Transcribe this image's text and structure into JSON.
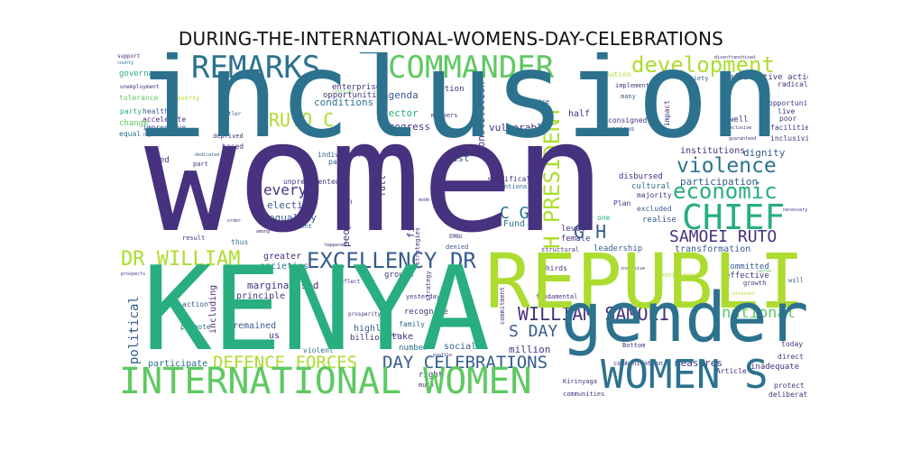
{
  "title": "DURING-THE-INTERNATIONAL-WOMENS-DAY-CELEBRATIONS",
  "palette": {
    "purple": "#46327e",
    "teal": "#2c728e",
    "green": "#28ae80",
    "lime": "#addc30",
    "blue": "#365c8d",
    "lightgreen": "#5ec962"
  },
  "words": {
    "inclusion": "inclusion",
    "women": "women",
    "kenya": "KENYA",
    "republic": "REPUBLIC",
    "gender": "gender",
    "international_women": "INTERNATIONAL WOMEN",
    "commander": "COMMANDER",
    "remarks": "REMARKS",
    "chief": "CHIEF",
    "development": "development",
    "violence": "violence",
    "economic": "economic",
    "excellency_dr": "EXCELLENCY DR",
    "dr_william": "DR WILLIAM",
    "women_s": "WOMEN S",
    "william_samoei": "WILLIAM SAMOEI",
    "samoei_ruto": "SAMOEI RUTO",
    "defence_forces": "DEFENCE FORCES",
    "day_celebrations": "DAY CELEBRATIONS",
    "h_president": "H PRESIDENT",
    "ruto_c": "RUTO C",
    "g_h": "G H",
    "c_g": "C G",
    "s_day": "S DAY",
    "national": "national",
    "every": "every",
    "political": "political",
    "participation": "participation",
    "dignity": "dignity",
    "conditions": "conditions",
    "agenda": "agenda",
    "sector": "sector",
    "governance": "governance",
    "constitution": "Constitution",
    "vulnerable": "vulnerable",
    "progress": "progress",
    "must": "must",
    "elective": "elective",
    "equality": "equality",
    "people": "people",
    "fund": "Fund",
    "marginalised": "marginalised",
    "principle": "principle",
    "greater": "greater",
    "societies": "societies",
    "remained": "remained",
    "participate": "participate",
    "us": "us",
    "million": "million",
    "social": "social",
    "highly": "highly",
    "take": "take",
    "recognise": "recognise",
    "measures": "measures",
    "transformation": "transformation",
    "institutions": "institutions",
    "committed": "committed",
    "effective": "effective",
    "leadership": "leadership",
    "positions": "positions",
    "well": "well",
    "poor": "poor",
    "half": "half",
    "disbursed": "disbursed",
    "cultural": "cultural",
    "majority": "majority",
    "excluded": "excluded",
    "realise": "realise",
    "level": "level",
    "female": "female",
    "thirds": "thirds",
    "fundamental": "fundamental",
    "affirmative_action": "affirmative action",
    "opportunity": "opportunity",
    "live": "live",
    "facilities": "facilities",
    "inclusivity": "inclusivity",
    "radical": "radical",
    "today": "today",
    "direct": "direct",
    "inadequate": "inadequate",
    "protect": "protect",
    "deliberately": "deliberately",
    "enterprise": "enterprise",
    "opportunities": "opportunities",
    "nation": "nation",
    "members": "members",
    "health": "health",
    "accelerate": "accelerate",
    "impressive": "impressive",
    "party": "party",
    "change": "change",
    "equal": "equal",
    "tolerance": "tolerance",
    "poverty": "poverty",
    "hustler": "Hustler",
    "deprived": "deprived",
    "based": "based",
    "need": "need",
    "part": "part",
    "unprecedented": "unprecedented",
    "individual": "individual",
    "past": "past",
    "men": "men",
    "investment": "investment",
    "thus": "thus",
    "result": "result",
    "including": "including",
    "action": "action",
    "promote": "promote",
    "violent": "violent",
    "billion": "billion",
    "number": "number",
    "right": "right",
    "much": "much",
    "financial": "financial",
    "strategies": "strategies",
    "full": "full",
    "denied": "denied",
    "communication": "communication",
    "article": "Article",
    "kirinyaga": "Kirinyaga",
    "communities": "communities",
    "bottom": "Bottom",
    "plan": "Plan",
    "one": "one",
    "implement": "implement",
    "many": "many",
    "various": "various",
    "consigned": "consigned",
    "contribution": "contribution",
    "society": "society",
    "impact": "impact",
    "specifically": "specifically",
    "intentional": "intentional",
    "twice": "Twice",
    "growth": "growth",
    "support": "support",
    "unemployment": "unemployment",
    "family": "family",
    "yesterday": "yesterday",
    "groups": "groups",
    "structural": "structural",
    "embu": "EMBU",
    "strategy": "strategy",
    "commitment": "commitment",
    "reflect": "reflect",
    "honour": "honour",
    "prosperity": "prosperity",
    "dedicated": "dedicated",
    "regions": "regions",
    "critical": "critical",
    "among": "among",
    "order": "order",
    "happened": "happened",
    "guaranteed": "guaranteed",
    "exclusive": "exclusive",
    "necessary": "necessary",
    "will": "will",
    "disenfranchised": "disenfranchised",
    "serve": "serve",
    "attained": "attained",
    "inclusive": "inclusive",
    "mode": "mode",
    "profile": "profile",
    "prospects": "prospects",
    "county": "county"
  }
}
